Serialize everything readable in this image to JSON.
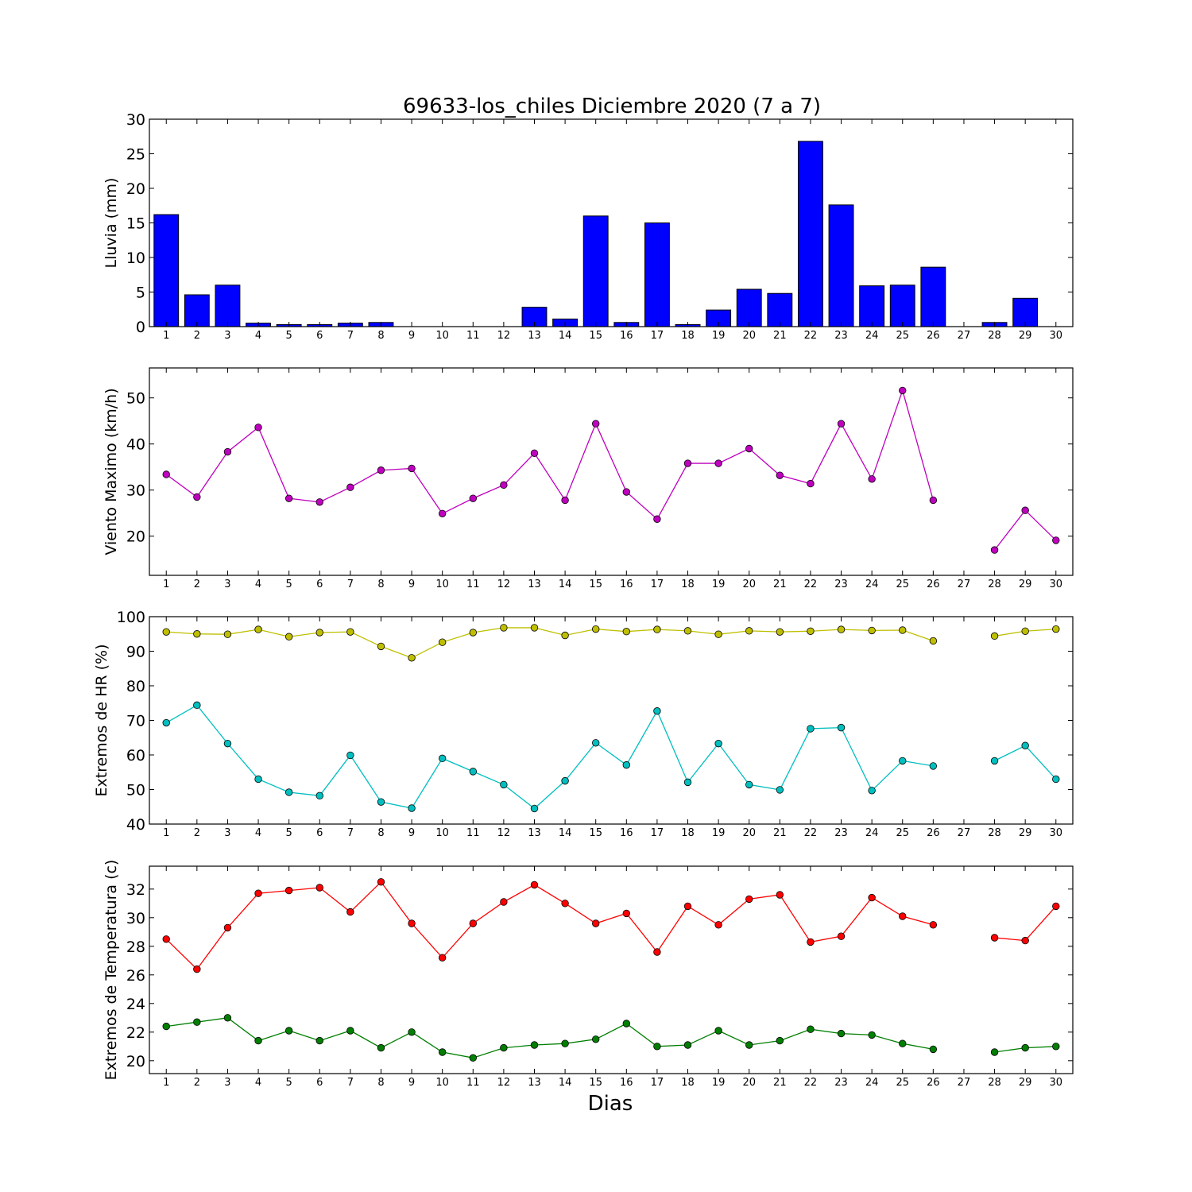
{
  "title": "69633-los_chiles Diciembre 2020  (7 a 7)",
  "xlabel": "Dias",
  "chart_data": [
    {
      "type": "bar",
      "ylabel": "Lluvia (mm)",
      "ylim": [
        0,
        30
      ],
      "yticks": [
        0,
        5,
        10,
        15,
        20,
        25,
        30
      ],
      "color": "#0000ff",
      "categories": [
        "1",
        "2",
        "3",
        "4",
        "5",
        "6",
        "7",
        "8",
        "9",
        "10",
        "11",
        "12",
        "13",
        "14",
        "15",
        "16",
        "17",
        "18",
        "19",
        "20",
        "21",
        "22",
        "23",
        "24",
        "25",
        "26",
        "27",
        "28",
        "29",
        "30"
      ],
      "values": [
        16.2,
        4.6,
        6.0,
        0.5,
        0.3,
        0.3,
        0.5,
        0.6,
        0,
        0,
        0,
        0,
        2.8,
        1.1,
        16.0,
        0.6,
        15.0,
        0.3,
        2.4,
        5.4,
        4.8,
        26.8,
        17.6,
        5.9,
        6.0,
        8.6,
        null,
        0.6,
        4.1,
        0
      ]
    },
    {
      "type": "line",
      "ylabel": "Viento Maximo (km/h)",
      "ylim": [
        11.5,
        56.5
      ],
      "yticks": [
        20,
        30,
        40,
        50
      ],
      "categories": [
        "1",
        "2",
        "3",
        "4",
        "5",
        "6",
        "7",
        "8",
        "9",
        "10",
        "11",
        "12",
        "13",
        "14",
        "15",
        "16",
        "17",
        "18",
        "19",
        "20",
        "21",
        "22",
        "23",
        "24",
        "25",
        "26",
        "27",
        "28",
        "29",
        "30"
      ],
      "series": [
        {
          "color": "#bf00bf",
          "values": [
            33.4,
            28.5,
            38.3,
            43.6,
            28.2,
            27.4,
            30.6,
            34.3,
            34.7,
            24.9,
            28.2,
            31.1,
            38.0,
            27.8,
            44.4,
            29.6,
            23.7,
            35.8,
            35.8,
            39.0,
            33.2,
            31.4,
            44.4,
            32.4,
            51.6,
            27.8,
            null,
            17.0,
            25.6,
            19.1
          ]
        }
      ]
    },
    {
      "type": "line",
      "ylabel": "Extremos de HR (%)",
      "ylim": [
        40,
        100
      ],
      "yticks": [
        40,
        50,
        60,
        70,
        80,
        90,
        100
      ],
      "categories": [
        "1",
        "2",
        "3",
        "4",
        "5",
        "6",
        "7",
        "8",
        "9",
        "10",
        "11",
        "12",
        "13",
        "14",
        "15",
        "16",
        "17",
        "18",
        "19",
        "20",
        "21",
        "22",
        "23",
        "24",
        "25",
        "26",
        "27",
        "28",
        "29",
        "30"
      ],
      "series": [
        {
          "color": "#bfbf00",
          "values": [
            95.6,
            95.0,
            94.9,
            96.3,
            94.2,
            95.4,
            95.6,
            91.4,
            88.1,
            92.6,
            95.4,
            96.8,
            96.8,
            94.6,
            96.4,
            95.7,
            96.3,
            95.9,
            94.9,
            95.9,
            95.6,
            95.8,
            96.3,
            96.0,
            96.1,
            93.0,
            null,
            94.4,
            95.8,
            96.4
          ]
        },
        {
          "color": "#00bfbf",
          "values": [
            69.3,
            74.4,
            63.3,
            53.0,
            49.2,
            48.2,
            59.9,
            46.4,
            44.6,
            59.0,
            55.2,
            51.4,
            44.5,
            52.5,
            63.5,
            57.1,
            72.7,
            52.1,
            63.3,
            51.4,
            49.9,
            67.6,
            67.9,
            49.7,
            58.3,
            56.8,
            null,
            58.3,
            62.7,
            53.0
          ]
        }
      ]
    },
    {
      "type": "line",
      "ylabel": "Extremos de Temperatura (c)",
      "ylim": [
        19.1,
        33.6
      ],
      "yticks": [
        20,
        22,
        24,
        26,
        28,
        30,
        32
      ],
      "categories": [
        "1",
        "2",
        "3",
        "4",
        "5",
        "6",
        "7",
        "8",
        "9",
        "10",
        "11",
        "12",
        "13",
        "14",
        "15",
        "16",
        "17",
        "18",
        "19",
        "20",
        "21",
        "22",
        "23",
        "24",
        "25",
        "26",
        "27",
        "28",
        "29",
        "30"
      ],
      "series": [
        {
          "color": "#ff0000",
          "values": [
            28.5,
            26.4,
            29.3,
            31.7,
            31.9,
            32.1,
            30.4,
            32.5,
            29.6,
            27.2,
            29.6,
            31.1,
            32.3,
            31.0,
            29.6,
            30.3,
            27.6,
            30.8,
            29.5,
            31.3,
            31.6,
            28.3,
            28.7,
            31.4,
            30.1,
            29.5,
            null,
            28.6,
            28.4,
            30.8
          ]
        },
        {
          "color": "#007f00",
          "values": [
            22.4,
            22.7,
            23.0,
            21.4,
            22.1,
            21.4,
            22.1,
            20.9,
            22.0,
            20.6,
            20.2,
            20.9,
            21.1,
            21.2,
            21.5,
            22.6,
            21.0,
            21.1,
            22.1,
            21.1,
            21.4,
            22.2,
            21.9,
            21.8,
            21.2,
            20.8,
            null,
            20.6,
            20.9,
            21.0
          ]
        }
      ]
    }
  ]
}
